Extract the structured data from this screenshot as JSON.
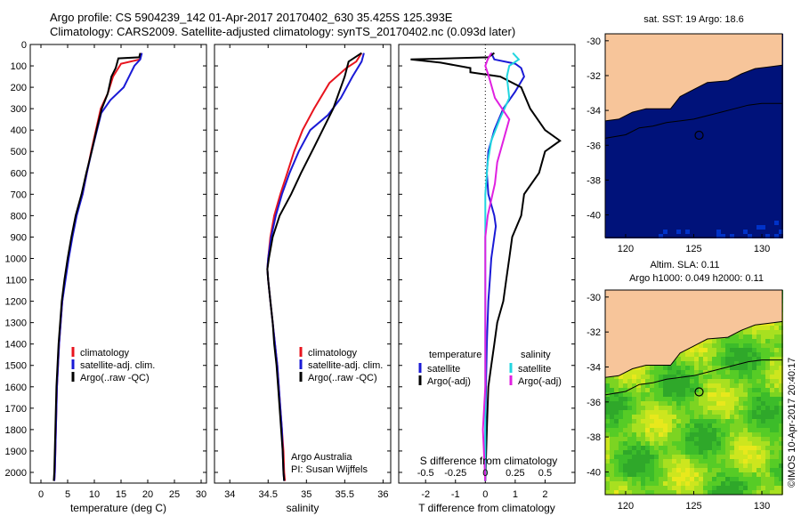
{
  "title_line1": "Argo profile: CS 5904239_142 01-Apr-2017 20170402_630 35.425S 125.393E",
  "title_line2": "Climatology: CARS2009. Satellite-adjusted climatology: synTS_20170402.nc (0.093d later)",
  "credit": "©IMOS 10-Apr-2017 20:40:17",
  "colors": {
    "climatology": "#e8141e",
    "satellite": "#1a1ad6",
    "argo": "#000000",
    "sal_satellite": "#22d6e0",
    "sal_argo": "#e020e0"
  },
  "chart_data": [
    {
      "id": "temperature",
      "type": "line",
      "xlabel": "temperature (deg C)",
      "ylabel": "",
      "xlim": [
        -2,
        31
      ],
      "ylim": [
        2050,
        0
      ],
      "xticks": [
        0,
        5,
        10,
        15,
        20,
        25,
        30
      ],
      "yticks": [
        0,
        100,
        200,
        300,
        400,
        500,
        600,
        700,
        800,
        900,
        1000,
        1100,
        1200,
        1300,
        1400,
        1500,
        1600,
        1700,
        1800,
        1900,
        2000
      ],
      "legend": {
        "position": "lower-middle",
        "entries": [
          "climatology",
          "satellite-adj. clim.",
          "Argo(..raw -QC)"
        ]
      },
      "series": [
        {
          "name": "climatology",
          "color": "#e8141e",
          "points": [
            [
              18.8,
              40
            ],
            [
              18.5,
              70
            ],
            [
              15,
              90
            ],
            [
              13.5,
              150
            ],
            [
              12.5,
              230
            ],
            [
              11.2,
              300
            ],
            [
              10.3,
              400
            ],
            [
              9.4,
              500
            ],
            [
              8.6,
              600
            ],
            [
              7.8,
              700
            ],
            [
              6.6,
              800
            ],
            [
              5.8,
              900
            ],
            [
              5.1,
              1000
            ],
            [
              4.5,
              1100
            ],
            [
              4.0,
              1200
            ],
            [
              3.7,
              1300
            ],
            [
              3.4,
              1400
            ],
            [
              3.2,
              1500
            ],
            [
              3.0,
              1600
            ],
            [
              2.8,
              1800
            ],
            [
              2.6,
              2000
            ],
            [
              2.5,
              2040
            ]
          ]
        },
        {
          "name": "satellite-adj. clim.",
          "color": "#1a1ad6",
          "points": [
            [
              18.9,
              40
            ],
            [
              18.6,
              70
            ],
            [
              17.5,
              100
            ],
            [
              16.5,
              150
            ],
            [
              15.5,
              200
            ],
            [
              13,
              260
            ],
            [
              11.3,
              320
            ],
            [
              10.3,
              420
            ],
            [
              9.5,
              500
            ],
            [
              8.6,
              600
            ],
            [
              7.8,
              700
            ],
            [
              6.7,
              800
            ],
            [
              5.9,
              900
            ],
            [
              5.2,
              1000
            ],
            [
              4.6,
              1100
            ],
            [
              4.0,
              1200
            ],
            [
              3.7,
              1300
            ],
            [
              3.4,
              1400
            ],
            [
              3.2,
              1500
            ],
            [
              3.0,
              1600
            ],
            [
              2.8,
              1800
            ],
            [
              2.6,
              2000
            ],
            [
              2.5,
              2040
            ]
          ]
        },
        {
          "name": "Argo(..raw -QC)",
          "color": "#000000",
          "points": [
            [
              18.6,
              40
            ],
            [
              18.4,
              60
            ],
            [
              14.5,
              65
            ],
            [
              14,
              110
            ],
            [
              13.2,
              150
            ],
            [
              12.5,
              230
            ],
            [
              11.4,
              300
            ],
            [
              10.4,
              400
            ],
            [
              9.5,
              500
            ],
            [
              8.5,
              600
            ],
            [
              7.6,
              700
            ],
            [
              6.5,
              800
            ],
            [
              5.7,
              900
            ],
            [
              5.0,
              1000
            ],
            [
              4.4,
              1100
            ],
            [
              3.9,
              1200
            ],
            [
              3.6,
              1300
            ],
            [
              3.3,
              1400
            ],
            [
              3.1,
              1500
            ],
            [
              2.9,
              1600
            ],
            [
              2.7,
              1800
            ],
            [
              2.5,
              2000
            ],
            [
              2.4,
              2040
            ]
          ]
        }
      ]
    },
    {
      "id": "salinity",
      "type": "line",
      "xlabel": "salinity",
      "ylabel": "",
      "xlim": [
        33.8,
        36.1
      ],
      "ylim": [
        2050,
        0
      ],
      "xticks": [
        34,
        34.5,
        35,
        35.5,
        36
      ],
      "xticklabels": [
        "34",
        "34.5",
        "35",
        "35.5",
        "36"
      ],
      "legend": {
        "position": "lower-right",
        "entries": [
          "climatology",
          "satellite-adj. clim.",
          "Argo(..raw -QC)"
        ]
      },
      "annotation": [
        "Argo Australia",
        "PI: Susan Wijffels"
      ],
      "series": [
        {
          "name": "climatology",
          "color": "#e8141e",
          "points": [
            [
              35.72,
              40
            ],
            [
              35.65,
              80
            ],
            [
              35.52,
              110
            ],
            [
              35.3,
              180
            ],
            [
              35.1,
              300
            ],
            [
              34.95,
              400
            ],
            [
              34.84,
              500
            ],
            [
              34.75,
              600
            ],
            [
              34.66,
              700
            ],
            [
              34.58,
              800
            ],
            [
              34.53,
              900
            ],
            [
              34.5,
              1000
            ],
            [
              34.49,
              1050
            ],
            [
              34.5,
              1100
            ],
            [
              34.53,
              1200
            ],
            [
              34.56,
              1300
            ],
            [
              34.59,
              1400
            ],
            [
              34.62,
              1500
            ],
            [
              34.64,
              1600
            ],
            [
              34.66,
              1700
            ],
            [
              34.68,
              1800
            ],
            [
              34.7,
              1900
            ],
            [
              34.71,
              2000
            ],
            [
              34.72,
              2040
            ]
          ]
        },
        {
          "name": "satellite-adj. clim.",
          "color": "#1a1ad6",
          "points": [
            [
              35.75,
              40
            ],
            [
              35.72,
              80
            ],
            [
              35.6,
              150
            ],
            [
              35.45,
              250
            ],
            [
              35.28,
              330
            ],
            [
              35.05,
              400
            ],
            [
              34.9,
              500
            ],
            [
              34.78,
              600
            ],
            [
              34.68,
              700
            ],
            [
              34.6,
              800
            ],
            [
              34.54,
              900
            ],
            [
              34.5,
              1000
            ],
            [
              34.49,
              1050
            ],
            [
              34.5,
              1100
            ],
            [
              34.53,
              1200
            ],
            [
              34.56,
              1300
            ],
            [
              34.59,
              1400
            ],
            [
              34.62,
              1500
            ],
            [
              34.64,
              1600
            ],
            [
              34.66,
              1700
            ],
            [
              34.68,
              1800
            ],
            [
              34.69,
              1900
            ],
            [
              34.7,
              2000
            ],
            [
              34.71,
              2040
            ]
          ]
        },
        {
          "name": "Argo(..raw -QC)",
          "color": "#000000",
          "points": [
            [
              35.72,
              40
            ],
            [
              35.55,
              80
            ],
            [
              35.5,
              150
            ],
            [
              35.35,
              300
            ],
            [
              35.1,
              480
            ],
            [
              34.93,
              600
            ],
            [
              34.8,
              700
            ],
            [
              34.65,
              800
            ],
            [
              34.56,
              900
            ],
            [
              34.51,
              1000
            ],
            [
              34.49,
              1050
            ],
            [
              34.5,
              1100
            ],
            [
              34.53,
              1200
            ],
            [
              34.56,
              1300
            ],
            [
              34.58,
              1400
            ],
            [
              34.61,
              1500
            ],
            [
              34.63,
              1600
            ],
            [
              34.65,
              1700
            ],
            [
              34.67,
              1800
            ],
            [
              34.69,
              1900
            ],
            [
              34.7,
              2000
            ],
            [
              34.71,
              2040
            ]
          ]
        }
      ]
    },
    {
      "id": "difference",
      "type": "line",
      "xlabel": "T difference from climatology",
      "xlabel2": "S difference from climatology",
      "xlim": [
        -2.9,
        3.0
      ],
      "ylim": [
        2050,
        0
      ],
      "xticks": [
        -2,
        -1,
        0,
        1,
        2
      ],
      "xticks_S": [
        -0.5,
        -0.25,
        0,
        0.25,
        0.5
      ],
      "xticklabels_S": [
        "-0.5",
        "-0.25",
        "0",
        "0.25",
        "0.5"
      ],
      "legend": {
        "position": "lower-middle",
        "temperature_heading": "temperature",
        "salinity_heading": "salinity",
        "entries": [
          "satellite",
          "Argo(-adj)",
          "satellite",
          "Argo(-adj)"
        ]
      },
      "series": [
        {
          "name": "satellite",
          "group": "temperature",
          "color": "#1a1ad6",
          "points": [
            [
              0.2,
              40
            ],
            [
              0.3,
              70
            ],
            [
              1.0,
              90
            ],
            [
              1.2,
              110
            ],
            [
              1.3,
              150
            ],
            [
              1.0,
              220
            ],
            [
              0.6,
              300
            ],
            [
              0.3,
              400
            ],
            [
              0.1,
              500
            ],
            [
              0.05,
              600
            ],
            [
              0.1,
              700
            ],
            [
              0.3,
              800
            ],
            [
              0.35,
              850
            ],
            [
              0.3,
              900
            ],
            [
              0.2,
              1000
            ],
            [
              0.15,
              1100
            ],
            [
              0.1,
              1200
            ],
            [
              0.05,
              1400
            ],
            [
              0.02,
              1600
            ],
            [
              0.0,
              1800
            ],
            [
              0.0,
              2040
            ]
          ]
        },
        {
          "name": "Argo(-adj)",
          "group": "temperature",
          "color": "#000000",
          "points": [
            [
              0.3,
              40
            ],
            [
              0.1,
              60
            ],
            [
              -2.5,
              70
            ],
            [
              -1.5,
              85
            ],
            [
              -0.5,
              110
            ],
            [
              -0.5,
              130
            ],
            [
              0.5,
              150
            ],
            [
              1.2,
              200
            ],
            [
              1.5,
              300
            ],
            [
              2.0,
              400
            ],
            [
              2.5,
              450
            ],
            [
              2.0,
              500
            ],
            [
              1.8,
              600
            ],
            [
              1.3,
              700
            ],
            [
              1.2,
              800
            ],
            [
              0.9,
              900
            ],
            [
              0.8,
              1000
            ],
            [
              0.7,
              1100
            ],
            [
              0.6,
              1200
            ],
            [
              0.4,
              1300
            ],
            [
              0.3,
              1400
            ],
            [
              0.2,
              1500
            ],
            [
              0.1,
              1600
            ],
            [
              0.05,
              1800
            ],
            [
              0.0,
              2040
            ]
          ]
        },
        {
          "name": "satellite",
          "group": "salinity",
          "color": "#22d6e0",
          "points": [
            [
              0.23,
              40
            ],
            [
              0.28,
              70
            ],
            [
              0.2,
              100
            ],
            [
              0.18,
              150
            ],
            [
              0.2,
              250
            ],
            [
              0.12,
              350
            ],
            [
              0.05,
              450
            ],
            [
              0.02,
              550
            ],
            [
              0.0,
              700
            ],
            [
              0.0,
              900
            ],
            [
              0.0,
              1200
            ],
            [
              0.0,
              1600
            ],
            [
              0.0,
              2040
            ]
          ]
        },
        {
          "name": "Argo(-adj)",
          "group": "salinity",
          "color": "#e020e0",
          "points": [
            [
              0.05,
              40
            ],
            [
              0.02,
              70
            ],
            [
              0.0,
              100
            ],
            [
              0.03,
              150
            ],
            [
              0.08,
              250
            ],
            [
              0.2,
              350
            ],
            [
              0.15,
              450
            ],
            [
              0.1,
              550
            ],
            [
              0.08,
              650
            ],
            [
              0.06,
              700
            ],
            [
              0.02,
              800
            ],
            [
              0.0,
              900
            ],
            [
              0.0,
              1200
            ],
            [
              0.0,
              1600
            ],
            [
              -0.02,
              1800
            ],
            [
              0.0,
              2040
            ]
          ]
        }
      ]
    },
    {
      "id": "sst_map",
      "type": "heatmap",
      "title": "sat. SST: 19 Argo: 18.6",
      "xlim": [
        118.5,
        131.5
      ],
      "ylim": [
        -41.3,
        -29.6
      ],
      "xticks": [
        120,
        125,
        130
      ],
      "yticks": [
        -30,
        -32,
        -34,
        -36,
        -38,
        -40
      ],
      "marker": {
        "lon": 125.393,
        "lat": -35.425
      }
    },
    {
      "id": "sla_map",
      "type": "heatmap",
      "title_line1": "Altim. SLA: 0.11",
      "title_line2": "Argo h1000: 0.049 h2000: 0.11",
      "xlim": [
        118.5,
        131.5
      ],
      "ylim": [
        -41.3,
        -29.6
      ],
      "xticks": [
        120,
        125,
        130
      ],
      "yticks": [
        -30,
        -32,
        -34,
        -36,
        -38,
        -40
      ],
      "marker": {
        "lon": 125.393,
        "lat": -35.425
      }
    }
  ]
}
